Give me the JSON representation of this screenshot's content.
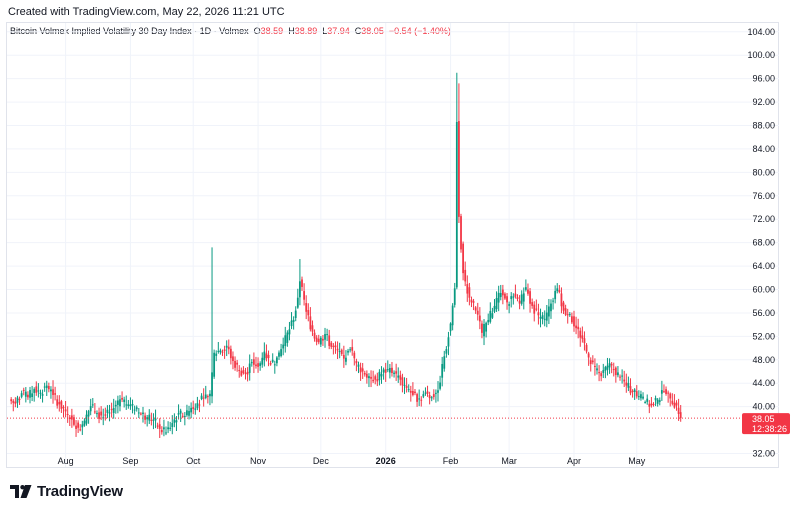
{
  "credit": "Created with TradingView.com, May 22, 2026 11:21 UTC",
  "legend": {
    "title": "Bitcoin Volmex Implied Volatility 30 Day Index · 1D · Volmex",
    "open_label": "O",
    "open": "38.59",
    "high_label": "H",
    "high": "38.89",
    "low_label": "L",
    "low": "37.94",
    "close_label": "C",
    "close": "38.05",
    "change": "−0.54 (−1.40%)"
  },
  "last_price": {
    "value": "38.05",
    "countdown": "12:38:26"
  },
  "brand": {
    "name": "TradingView"
  },
  "colors": {
    "up": "#089981",
    "down": "#f23645",
    "grid": "#f0f3fa",
    "axis_text": "#131722"
  },
  "chart_data": {
    "type": "candlestick",
    "y_ticks": [
      "104.00",
      "100.00",
      "96.00",
      "92.00",
      "88.00",
      "84.00",
      "80.00",
      "76.00",
      "72.00",
      "68.00",
      "64.00",
      "60.00",
      "56.00",
      "52.00",
      "48.00",
      "44.00",
      "40.00",
      "32.00"
    ],
    "ylim": [
      29.7,
      105.5
    ],
    "x_ticks": [
      {
        "label": "Aug",
        "date": "2025-08-01"
      },
      {
        "label": "Sep",
        "date": "2025-09-01"
      },
      {
        "label": "Oct",
        "date": "2025-10-01"
      },
      {
        "label": "Nov",
        "date": "2025-11-01"
      },
      {
        "label": "Dec",
        "date": "2025-12-01"
      },
      {
        "label": "2026",
        "date": "2026-01-01",
        "bold": true
      },
      {
        "label": "Feb",
        "date": "2026-02-01"
      },
      {
        "label": "Mar",
        "date": "2026-03-01"
      },
      {
        "label": "Apr",
        "date": "2026-04-01"
      },
      {
        "label": "May",
        "date": "2026-05-01"
      }
    ],
    "x_range": [
      "2025-07-04",
      "2026-06-16"
    ],
    "last_close": 38.05,
    "grid": true,
    "closes": [
      {
        "date": "2025-07-05",
        "close": 41.2
      },
      {
        "date": "2025-07-08",
        "close": 40.5
      },
      {
        "date": "2025-07-11",
        "close": 42.3
      },
      {
        "date": "2025-07-14",
        "close": 41.6
      },
      {
        "date": "2025-07-17",
        "close": 43.0
      },
      {
        "date": "2025-07-20",
        "close": 42.4
      },
      {
        "date": "2025-07-23",
        "close": 43.6
      },
      {
        "date": "2025-07-26",
        "close": 42.0
      },
      {
        "date": "2025-07-29",
        "close": 40.4
      },
      {
        "date": "2025-08-01",
        "close": 39.2
      },
      {
        "date": "2025-08-04",
        "close": 37.8
      },
      {
        "date": "2025-08-07",
        "close": 36.4
      },
      {
        "date": "2025-08-10",
        "close": 37.6
      },
      {
        "date": "2025-08-13",
        "close": 40.1
      },
      {
        "date": "2025-08-16",
        "close": 38.9
      },
      {
        "date": "2025-08-19",
        "close": 38.2
      },
      {
        "date": "2025-08-22",
        "close": 39.0
      },
      {
        "date": "2025-08-25",
        "close": 40.3
      },
      {
        "date": "2025-08-28",
        "close": 41.2
      },
      {
        "date": "2025-08-31",
        "close": 40.4
      },
      {
        "date": "2025-09-03",
        "close": 39.5
      },
      {
        "date": "2025-09-06",
        "close": 38.8
      },
      {
        "date": "2025-09-09",
        "close": 38.2
      },
      {
        "date": "2025-09-12",
        "close": 37.8
      },
      {
        "date": "2025-09-15",
        "close": 36.2
      },
      {
        "date": "2025-09-18",
        "close": 35.6
      },
      {
        "date": "2025-09-21",
        "close": 37.2
      },
      {
        "date": "2025-09-24",
        "close": 38.9
      },
      {
        "date": "2025-09-27",
        "close": 38.4
      },
      {
        "date": "2025-09-30",
        "close": 39.8
      },
      {
        "date": "2025-10-03",
        "close": 40.6
      },
      {
        "date": "2025-10-06",
        "close": 41.4
      },
      {
        "date": "2025-10-09",
        "close": 42.2
      },
      {
        "date": "2025-10-11",
        "close": 49.2
      },
      {
        "date": "2025-10-14",
        "close": 49.6
      },
      {
        "date": "2025-10-17",
        "close": 50.4
      },
      {
        "date": "2025-10-20",
        "close": 47.8
      },
      {
        "date": "2025-10-23",
        "close": 46.2
      },
      {
        "date": "2025-10-26",
        "close": 45.6
      },
      {
        "date": "2025-10-29",
        "close": 47.6
      },
      {
        "date": "2025-11-01",
        "close": 46.8
      },
      {
        "date": "2025-11-04",
        "close": 49.4
      },
      {
        "date": "2025-11-07",
        "close": 47.2
      },
      {
        "date": "2025-11-10",
        "close": 48.4
      },
      {
        "date": "2025-11-13",
        "close": 50.6
      },
      {
        "date": "2025-11-16",
        "close": 53.2
      },
      {
        "date": "2025-11-19",
        "close": 56.4
      },
      {
        "date": "2025-11-21",
        "close": 61.4
      },
      {
        "date": "2025-11-24",
        "close": 56.2
      },
      {
        "date": "2025-11-27",
        "close": 52.8
      },
      {
        "date": "2025-11-30",
        "close": 51.0
      },
      {
        "date": "2025-12-03",
        "close": 52.4
      },
      {
        "date": "2025-12-06",
        "close": 50.2
      },
      {
        "date": "2025-12-09",
        "close": 49.6
      },
      {
        "date": "2025-12-12",
        "close": 48.2
      },
      {
        "date": "2025-12-15",
        "close": 49.8
      },
      {
        "date": "2025-12-18",
        "close": 47.4
      },
      {
        "date": "2025-12-21",
        "close": 46.0
      },
      {
        "date": "2025-12-24",
        "close": 45.2
      },
      {
        "date": "2025-12-27",
        "close": 44.6
      },
      {
        "date": "2025-12-30",
        "close": 45.6
      },
      {
        "date": "2026-01-02",
        "close": 46.4
      },
      {
        "date": "2026-01-05",
        "close": 45.8
      },
      {
        "date": "2026-01-08",
        "close": 44.6
      },
      {
        "date": "2026-01-11",
        "close": 43.2
      },
      {
        "date": "2026-01-14",
        "close": 42.0
      },
      {
        "date": "2026-01-17",
        "close": 41.4
      },
      {
        "date": "2026-01-20",
        "close": 42.4
      },
      {
        "date": "2026-01-23",
        "close": 41.6
      },
      {
        "date": "2026-01-26",
        "close": 42.8
      },
      {
        "date": "2026-01-29",
        "close": 48.6
      },
      {
        "date": "2026-02-01",
        "close": 54.2
      },
      {
        "date": "2026-02-03",
        "close": 60.2
      },
      {
        "date": "2026-02-04",
        "close": 88.6
      },
      {
        "date": "2026-02-05",
        "close": 72.4
      },
      {
        "date": "2026-02-07",
        "close": 62.8
      },
      {
        "date": "2026-02-10",
        "close": 58.6
      },
      {
        "date": "2026-02-13",
        "close": 56.4
      },
      {
        "date": "2026-02-16",
        "close": 52.6
      },
      {
        "date": "2026-02-19",
        "close": 54.8
      },
      {
        "date": "2026-02-22",
        "close": 57.2
      },
      {
        "date": "2026-02-25",
        "close": 59.4
      },
      {
        "date": "2026-02-28",
        "close": 57.8
      },
      {
        "date": "2026-03-03",
        "close": 58.8
      },
      {
        "date": "2026-03-06",
        "close": 57.6
      },
      {
        "date": "2026-03-09",
        "close": 60.4
      },
      {
        "date": "2026-03-12",
        "close": 57.2
      },
      {
        "date": "2026-03-15",
        "close": 55.6
      },
      {
        "date": "2026-03-18",
        "close": 55.0
      },
      {
        "date": "2026-03-21",
        "close": 57.6
      },
      {
        "date": "2026-03-24",
        "close": 60.2
      },
      {
        "date": "2026-03-27",
        "close": 56.4
      },
      {
        "date": "2026-03-30",
        "close": 55.8
      },
      {
        "date": "2026-04-02",
        "close": 53.4
      },
      {
        "date": "2026-04-05",
        "close": 51.6
      },
      {
        "date": "2026-04-08",
        "close": 48.4
      },
      {
        "date": "2026-04-11",
        "close": 46.8
      },
      {
        "date": "2026-04-14",
        "close": 45.2
      },
      {
        "date": "2026-04-17",
        "close": 47.0
      },
      {
        "date": "2026-04-20",
        "close": 46.4
      },
      {
        "date": "2026-04-23",
        "close": 45.0
      },
      {
        "date": "2026-04-26",
        "close": 43.6
      },
      {
        "date": "2026-04-29",
        "close": 42.6
      },
      {
        "date": "2026-05-02",
        "close": 41.8
      },
      {
        "date": "2026-05-05",
        "close": 40.8
      },
      {
        "date": "2026-05-08",
        "close": 40.2
      },
      {
        "date": "2026-05-11",
        "close": 41.2
      },
      {
        "date": "2026-05-14",
        "close": 42.6
      },
      {
        "date": "2026-05-17",
        "close": 41.4
      },
      {
        "date": "2026-05-20",
        "close": 40.2
      },
      {
        "date": "2026-05-22",
        "close": 38.05
      }
    ],
    "spikes": [
      {
        "date": "2025-10-10",
        "high": 67.2
      },
      {
        "date": "2025-11-21",
        "high": 65.2
      },
      {
        "date": "2026-02-04",
        "high": 97.0
      },
      {
        "date": "2026-02-05",
        "high": 95.2
      }
    ]
  }
}
